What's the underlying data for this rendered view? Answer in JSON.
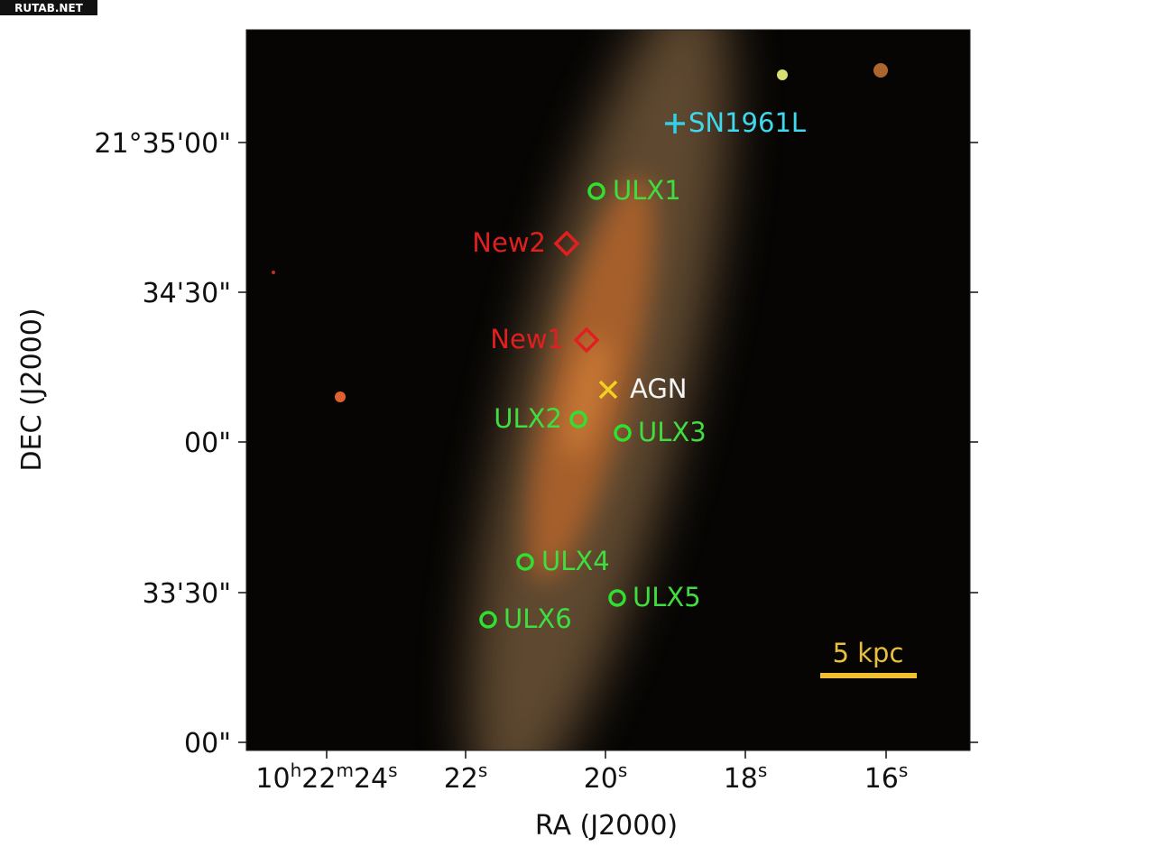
{
  "watermark": "RUTAB.NET",
  "y_axis": {
    "label": "DEC (J2000)",
    "ticks": [
      "21°35'00\"",
      "34'30\"",
      "00\"",
      "33'30\"",
      "00\""
    ]
  },
  "x_axis": {
    "label": "RA (J2000)",
    "ticks": [
      [
        "10",
        "h",
        "22",
        "m",
        "24",
        "s"
      ],
      [
        "22",
        "s"
      ],
      [
        "20",
        "s"
      ],
      [
        "18",
        "s"
      ],
      [
        "16",
        "s"
      ]
    ]
  },
  "markers": [
    {
      "label": "SN1961L"
    },
    {
      "label": "ULX1"
    },
    {
      "label": "New2"
    },
    {
      "label": "New1"
    },
    {
      "label": "AGN"
    },
    {
      "label": "ULX2"
    },
    {
      "label": "ULX3"
    },
    {
      "label": "ULX4"
    },
    {
      "label": "ULX5"
    },
    {
      "label": "ULX6"
    }
  ],
  "scale_bar": {
    "label": "5 kpc"
  }
}
